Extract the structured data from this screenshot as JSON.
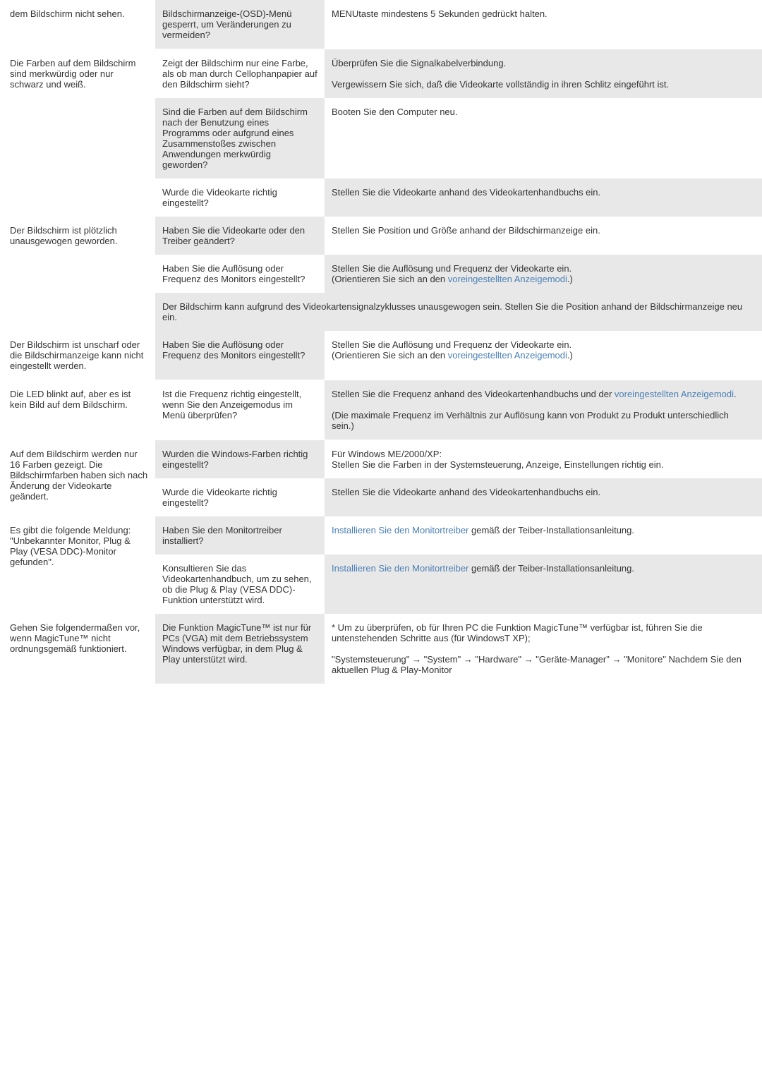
{
  "rows": [
    {
      "col1": "dem Bildschirm nicht sehen.",
      "col2": "Bildschirmanzeige-(OSD)-Menü gesperrt, um Veränderungen zu vermeiden?",
      "col3": "MENUtaste mindestens 5 Sekunden gedrückt halten.",
      "bg2": "gray",
      "bg3": "white"
    },
    {
      "col1": "Die Farben auf dem Bildschirm sind merkwürdig oder nur schwarz und weiß.",
      "sub": [
        {
          "col2": "Zeigt der Bildschirm nur eine Farbe, als ob man durch Cellophanpapier auf den Bildschirm sieht?",
          "col3_parts": [
            {
              "text": "Überprüfen Sie die Signalkabelverbindung."
            },
            {
              "text": ""
            },
            {
              "text": "Vergewissern Sie sich, daß die Videokarte vollständig in ihren Schlitz eingeführt ist."
            }
          ],
          "bg2": "white",
          "bg3": "gray"
        },
        {
          "col2": "Sind die Farben auf dem Bildschirm nach der Benutzung eines Programms oder aufgrund eines Zusammenstoßes zwischen Anwendungen merkwürdig geworden?",
          "col3": "Booten Sie den Computer neu.",
          "bg2": "gray",
          "bg3": "white"
        },
        {
          "col2": "Wurde die Videokarte richtig eingestellt?",
          "col3": "Stellen Sie die Videokarte anhand des Videokartenhandbuchs ein.",
          "bg2": "white",
          "bg3": "gray"
        }
      ]
    },
    {
      "col1": "Der Bildschirm ist plötzlich unausgewogen geworden.",
      "sub": [
        {
          "col2": "Haben Sie die Videokarte oder den Treiber geändert?",
          "col3": "Stellen Sie Position und Größe anhand der Bildschirmanzeige ein.",
          "bg2": "gray",
          "bg3": "white"
        },
        {
          "col2": "Haben Sie die Auflösung oder Frequenz des Monitors eingestellt?",
          "col3_parts": [
            {
              "text": "Stellen Sie die Auflösung und Frequenz der Videokarte ein."
            },
            {
              "text": "(Orientieren Sie sich an den "
            },
            {
              "text": "voreingestellten Anzeigemodi",
              "link": true
            },
            {
              "text": ".)"
            }
          ],
          "bg2": "white",
          "bg3": "gray"
        },
        {
          "full": "Der Bildschirm kann aufgrund des Videokartensignalzyklusses unausgewogen sein. Stellen Sie die Position anhand der Bildschirmanzeige neu ein.",
          "bg": "gray"
        }
      ]
    },
    {
      "col1": "Der Bildschirm ist unscharf oder die Bildschirmanzeige kann nicht eingestellt werden.",
      "col2": "Haben Sie die Auflösung oder Frequenz des Monitors eingestellt?",
      "col3_parts": [
        {
          "text": "Stellen Sie die Auflösung und Frequenz der Videokarte ein."
        },
        {
          "text": "(Orientieren Sie sich an den "
        },
        {
          "text": "voreingestellten Anzeigemodi",
          "link": true
        },
        {
          "text": ".)"
        }
      ],
      "bg2": "gray",
      "bg3": "white"
    },
    {
      "col1": "Die LED blinkt auf, aber es ist kein Bild auf dem Bildschirm.",
      "col2": "Ist die Frequenz richtig eingestellt, wenn Sie den Anzeigemodus im Menü überprüfen?",
      "col3_parts": [
        {
          "text": "Stellen Sie die Frequenz anhand des Videokartenhandbuchs und der "
        },
        {
          "text": "voreingestellten Anzeigemodi",
          "link": true
        },
        {
          "text": "."
        },
        {
          "text": ""
        },
        {
          "text": "(Die maximale Frequenz im Verhältnis zur Auflösung kann von Produkt zu Produkt unterschiedlich sein.)"
        }
      ],
      "bg2": "white",
      "bg3": "gray"
    },
    {
      "col1": "Auf dem Bildschirm werden nur 16 Farben gezeigt. Die Bildschirmfarben haben sich nach Änderung der Videokarte geändert.",
      "sub": [
        {
          "col2": "Wurden die Windows-Farben richtig eingestellt?",
          "col3_parts": [
            {
              "text": "Für Windows ME/2000/XP:"
            },
            {
              "text": "Stellen Sie die Farben in der Systemsteuerung, Anzeige, Einstellungen richtig ein."
            }
          ],
          "bg2": "gray",
          "bg3": "white"
        },
        {
          "col2": "Wurde die Videokarte richtig eingestellt?",
          "col3": "Stellen Sie die Videokarte anhand des Videokartenhandbuchs ein.",
          "bg2": "white",
          "bg3": "gray"
        }
      ]
    },
    {
      "col1": "Es gibt die folgende Meldung: \"Unbekannter Monitor, Plug & Play (VESA DDC)-Monitor gefunden\".",
      "sub": [
        {
          "col2": "Haben Sie den Monitortreiber installiert?",
          "col3_parts": [
            {
              "text": "Installieren Sie den Monitortreiber",
              "link": true
            },
            {
              "text": " gemäß der Teiber-Installationsanleitung."
            }
          ],
          "bg2": "gray",
          "bg3": "white"
        },
        {
          "col2": "Konsultieren Sie das Videokartenhandbuch, um zu sehen, ob die Plug & Play (VESA DDC)-Funktion unterstützt wird.",
          "col3_parts": [
            {
              "text": "Installieren Sie den Monitortreiber",
              "link": true
            },
            {
              "text": " gemäß der Teiber-Installationsanleitung."
            }
          ],
          "bg2": "white",
          "bg3": "gray"
        }
      ]
    },
    {
      "col1": "Gehen Sie folgendermaßen vor, wenn MagicTune™ nicht ordnungsgemäß funktioniert.",
      "col2": "Die Funktion MagicTune™ ist nur für PCs (VGA) mit dem Betriebssystem Windows verfügbar, in dem Plug & Play unterstützt wird.",
      "col3_parts": [
        {
          "text": "* Um zu überprüfen, ob für Ihren PC die Funktion MagicTune™ verfügbar ist, führen Sie die untenstehenden Schritte aus (für WindowsT XP);"
        },
        {
          "text": ""
        },
        {
          "text": "\"Systemsteuerung\" → \"System\" → \"Hardware\" → \"Geräte-Manager\" → \"Monitore\" Nachdem Sie den aktuellen Plug & Play-Monitor"
        }
      ],
      "bg2": "gray",
      "bg3": "white"
    }
  ]
}
